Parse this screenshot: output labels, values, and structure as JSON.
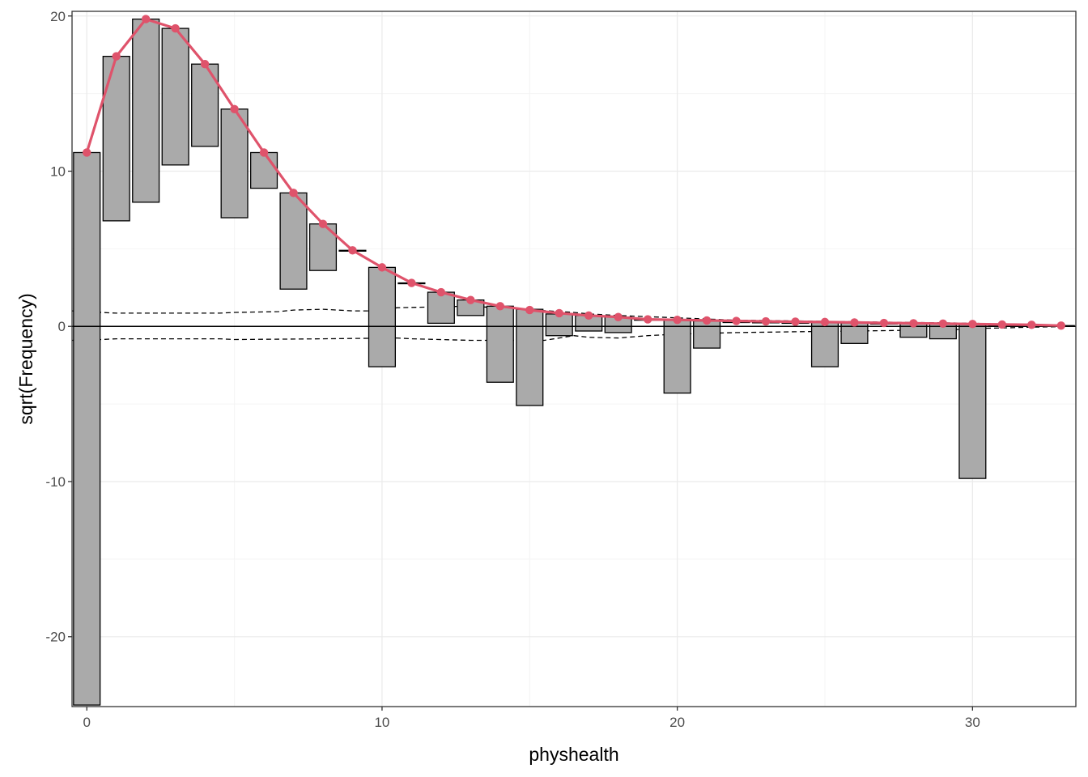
{
  "chart_data": {
    "type": "rootogram",
    "title": "",
    "xlabel": "physhealth",
    "ylabel": "sqrt(Frequency)",
    "xlim": [
      -0.5,
      33.5
    ],
    "ylim": [
      -24.5,
      20.3
    ],
    "x_ticks": [
      0,
      10,
      20,
      30
    ],
    "y_ticks": [
      -20,
      -10,
      0,
      10,
      20
    ],
    "grid": true,
    "colors": {
      "bar_fill": "#aaaaaa",
      "bar_stroke": "#000000",
      "expected_line": "#df536b",
      "grid_major": "#ebebeb",
      "grid_minor": "#f4f4f4",
      "reference_line": "#000000"
    },
    "bars": [
      {
        "x": 0,
        "top": 11.2,
        "bottom": -24.4
      },
      {
        "x": 1,
        "top": 17.4,
        "bottom": 6.8
      },
      {
        "x": 2,
        "top": 19.8,
        "bottom": 8.0
      },
      {
        "x": 3,
        "top": 19.2,
        "bottom": 10.4
      },
      {
        "x": 4,
        "top": 16.9,
        "bottom": 11.6
      },
      {
        "x": 5,
        "top": 14.0,
        "bottom": 7.0
      },
      {
        "x": 6,
        "top": 11.2,
        "bottom": 8.9
      },
      {
        "x": 7,
        "top": 8.6,
        "bottom": 2.4
      },
      {
        "x": 8,
        "top": 6.6,
        "bottom": 3.6
      },
      {
        "x": 9,
        "top": 4.9,
        "bottom": 4.9
      },
      {
        "x": 10,
        "top": 3.8,
        "bottom": -2.6
      },
      {
        "x": 11,
        "top": 2.8,
        "bottom": 2.8
      },
      {
        "x": 12,
        "top": 2.2,
        "bottom": 0.2
      },
      {
        "x": 13,
        "top": 1.7,
        "bottom": 0.7
      },
      {
        "x": 14,
        "top": 1.3,
        "bottom": -3.6
      },
      {
        "x": 15,
        "top": 1.1,
        "bottom": -5.1
      },
      {
        "x": 16,
        "top": 0.8,
        "bottom": -0.6
      },
      {
        "x": 17,
        "top": 0.7,
        "bottom": -0.3
      },
      {
        "x": 18,
        "top": 0.6,
        "bottom": -0.4
      },
      {
        "x": 19,
        "top": 0.45,
        "bottom": 0.45
      },
      {
        "x": 20,
        "top": 0.4,
        "bottom": -4.3
      },
      {
        "x": 21,
        "top": 0.35,
        "bottom": -1.4
      },
      {
        "x": 22,
        "top": 0.3,
        "bottom": 0.3
      },
      {
        "x": 23,
        "top": 0.28,
        "bottom": 0.28
      },
      {
        "x": 24,
        "top": 0.25,
        "bottom": 0.25
      },
      {
        "x": 25,
        "top": 0.25,
        "bottom": -2.6
      },
      {
        "x": 26,
        "top": 0.22,
        "bottom": -1.1
      },
      {
        "x": 27,
        "top": 0.2,
        "bottom": 0.2
      },
      {
        "x": 28,
        "top": 0.18,
        "bottom": -0.7
      },
      {
        "x": 29,
        "top": 0.16,
        "bottom": -0.8
      },
      {
        "x": 30,
        "top": 0.14,
        "bottom": -9.8
      },
      {
        "x": 31,
        "top": 0.12,
        "bottom": 0.12
      },
      {
        "x": 32,
        "top": 0.1,
        "bottom": 0.1
      },
      {
        "x": 33,
        "top": 0.05,
        "bottom": 0.05
      }
    ],
    "expected": {
      "x": [
        0,
        1,
        2,
        3,
        4,
        5,
        6,
        7,
        8,
        9,
        10,
        11,
        12,
        13,
        14,
        15,
        16,
        17,
        18,
        19,
        20,
        21,
        22,
        23,
        24,
        25,
        26,
        27,
        28,
        29,
        30,
        31,
        32,
        33
      ],
      "y": [
        11.2,
        17.4,
        19.8,
        19.2,
        16.9,
        14.0,
        11.2,
        8.6,
        6.6,
        4.9,
        3.8,
        2.8,
        2.2,
        1.7,
        1.3,
        1.05,
        0.85,
        0.7,
        0.6,
        0.45,
        0.42,
        0.38,
        0.35,
        0.32,
        0.3,
        0.28,
        0.25,
        0.22,
        0.2,
        0.18,
        0.15,
        0.12,
        0.1,
        0.05
      ]
    },
    "ci_upper": {
      "x": [
        -0.5,
        0.5,
        1,
        4.5,
        5,
        6.5,
        7,
        8,
        9,
        10,
        10.5,
        13,
        16.5,
        17,
        18,
        20,
        22,
        24,
        26,
        28,
        30,
        31,
        32,
        33
      ],
      "y": [
        1.0,
        0.9,
        0.85,
        0.85,
        0.9,
        0.95,
        1.05,
        1.1,
        1.0,
        1.0,
        1.2,
        1.3,
        0.9,
        0.8,
        0.7,
        0.55,
        0.4,
        0.35,
        0.3,
        0.25,
        0.2,
        0.15,
        0.1,
        0.05
      ]
    },
    "ci_lower": {
      "x": [
        -0.5,
        0.5,
        1,
        4.5,
        5,
        8,
        10.5,
        11,
        13,
        15.5,
        16.5,
        17,
        18,
        19,
        20,
        22,
        24,
        26,
        28,
        29.5,
        30.5,
        31,
        32,
        33
      ],
      "y": [
        -0.9,
        -0.85,
        -0.8,
        -0.8,
        -0.85,
        -0.8,
        -0.75,
        -0.8,
        -0.9,
        -0.9,
        -0.6,
        -0.7,
        -0.75,
        -0.6,
        -0.5,
        -0.4,
        -0.35,
        -0.3,
        -0.25,
        -0.2,
        -0.12,
        -0.1,
        -0.05,
        -0.02
      ]
    }
  }
}
